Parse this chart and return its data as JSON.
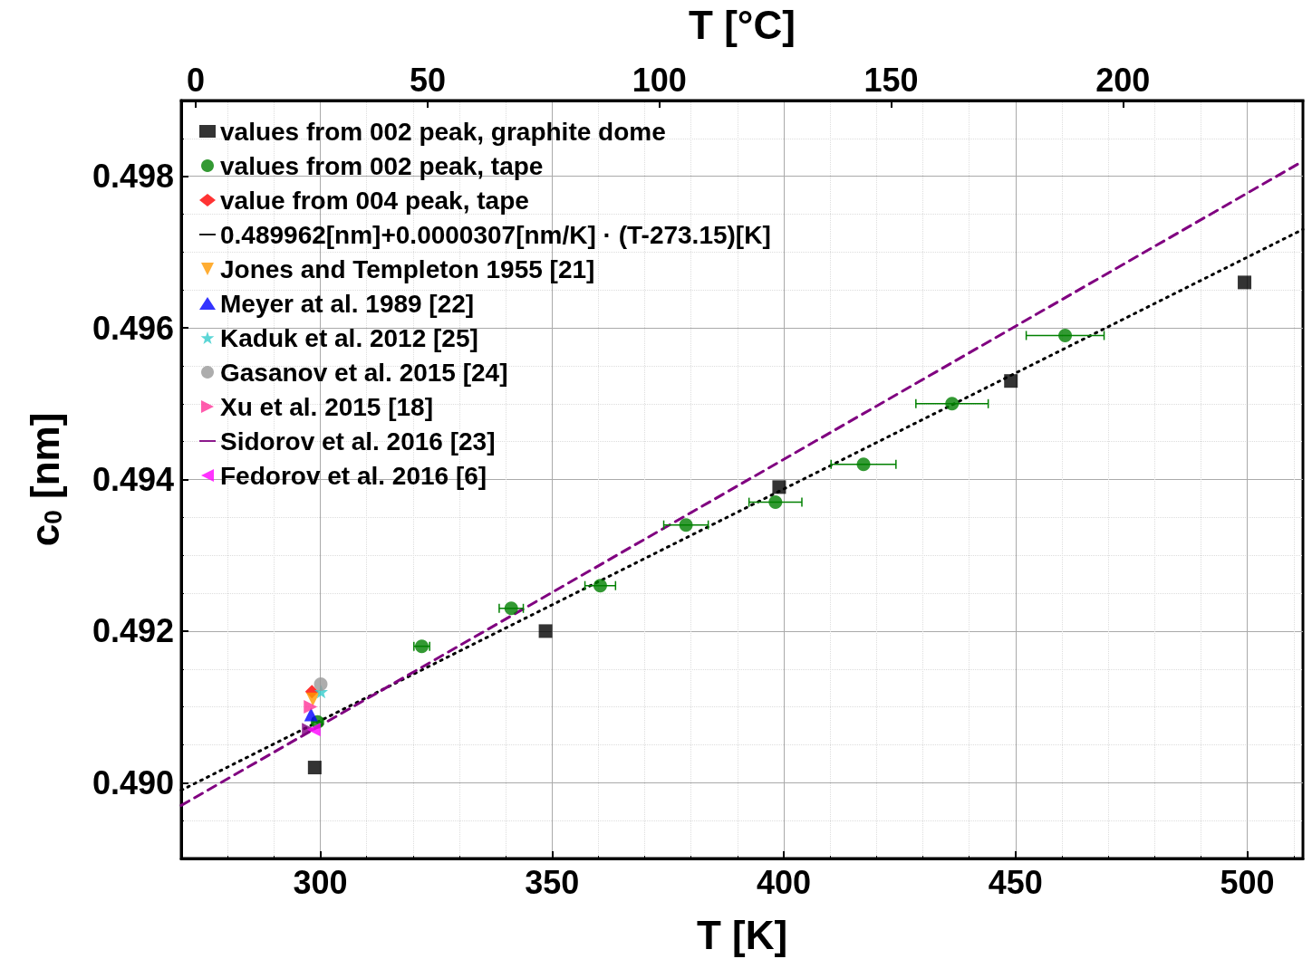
{
  "chart_data": {
    "type": "scatter",
    "xlabel": "T [K]",
    "ylabel": "c$_{0}$ [nm]",
    "x2label": "T [°C]",
    "xlim": [
      270,
      512
    ],
    "xticks": [
      300,
      350,
      400,
      450,
      500
    ],
    "x2lim": [
      -3.15,
      238.85
    ],
    "x2ticks": [
      0,
      50,
      100,
      150,
      200
    ],
    "ylim": [
      0.489,
      0.499
    ],
    "yticks": [
      {
        "value": 0.49,
        "label": "0.490"
      },
      {
        "value": 0.492,
        "label": "0.492"
      },
      {
        "value": 0.494,
        "label": "0.494"
      },
      {
        "value": 0.496,
        "label": "0.496"
      },
      {
        "value": 0.498,
        "label": "0.498"
      }
    ],
    "grid": true,
    "legend": "top left",
    "series": [
      {
        "name": "values from 002 peak, graphite dome",
        "marker": "square",
        "color": "#000000",
        "x": [
          298.8,
          348.6,
          399,
          449,
          499.4
        ],
        "values": [
          0.4902,
          0.492,
          0.4939,
          0.4953,
          0.4966
        ]
      },
      {
        "name": "values from 002 peak, tape",
        "marker": "circle",
        "color": "#008000",
        "x": [
          299.4,
          321.9,
          341.2,
          360.4,
          378.9,
          398.2,
          417.2,
          436.3,
          460.7
        ],
        "values": [
          0.4908,
          0.4918,
          0.4923,
          0.4926,
          0.4934,
          0.4937,
          0.4942,
          0.495,
          0.4959
        ],
        "xerrors": [
          1,
          1.7,
          2.6,
          3.3,
          4.8,
          5.7,
          7,
          7.8,
          8.4
        ]
      },
      {
        "name": "value from 004 peak, tape",
        "marker": "diamond",
        "color": "#ff0000",
        "x": [
          298.2
        ],
        "values": [
          0.4912
        ]
      },
      {
        "name": "0.489962[nm]+0.0000307[nm/K] · (T-273.15)[K]",
        "type": "line",
        "marker": "none",
        "line_style": "dotted",
        "color": "#000000",
        "x": [
          270,
          512
        ],
        "values": [
          0.4899,
          0.4973
        ]
      },
      {
        "name": "Jones and Templeton 1955 [21]",
        "marker": "triangle-down",
        "color": "#ff9900",
        "x": [
          298.4
        ],
        "values": [
          0.4911
        ]
      },
      {
        "name": "Meyer at al. 1989 [22]",
        "marker": "triangle",
        "color": "#0000ff",
        "x": [
          298
        ],
        "values": [
          0.4909
        ]
      },
      {
        "name": "Kaduk et al. 2012 [25]",
        "marker": "star",
        "color": "#33cccc",
        "x": [
          300.2
        ],
        "values": [
          0.4912
        ]
      },
      {
        "name": "Gasanov et al. 2015 [24]",
        "marker": "circle",
        "color": "#999999",
        "x": [
          300.1
        ],
        "values": [
          0.4913
        ]
      },
      {
        "name": "Xu et al. 2015 [18]",
        "marker": "triangle-right",
        "color": "#ff3399",
        "x": [
          297.9
        ],
        "values": [
          0.491
        ]
      },
      {
        "name": "Sidorov et al. 2016 [23]",
        "type": "line",
        "marker": "none",
        "line_style": "dashed",
        "color": "#800080",
        "x": [
          270,
          512
        ],
        "values": [
          0.4897,
          0.4982
        ]
      },
      {
        "marker": "triangle-right",
        "color": "#800080",
        "x": [
          297.5
        ],
        "values": [
          0.4907
        ]
      },
      {
        "name": "Fedorov et al. 2016 [6]",
        "marker": "triangle-left",
        "color": "#ff00ff",
        "x": [
          298.6
        ],
        "values": [
          0.4907
        ]
      }
    ]
  }
}
